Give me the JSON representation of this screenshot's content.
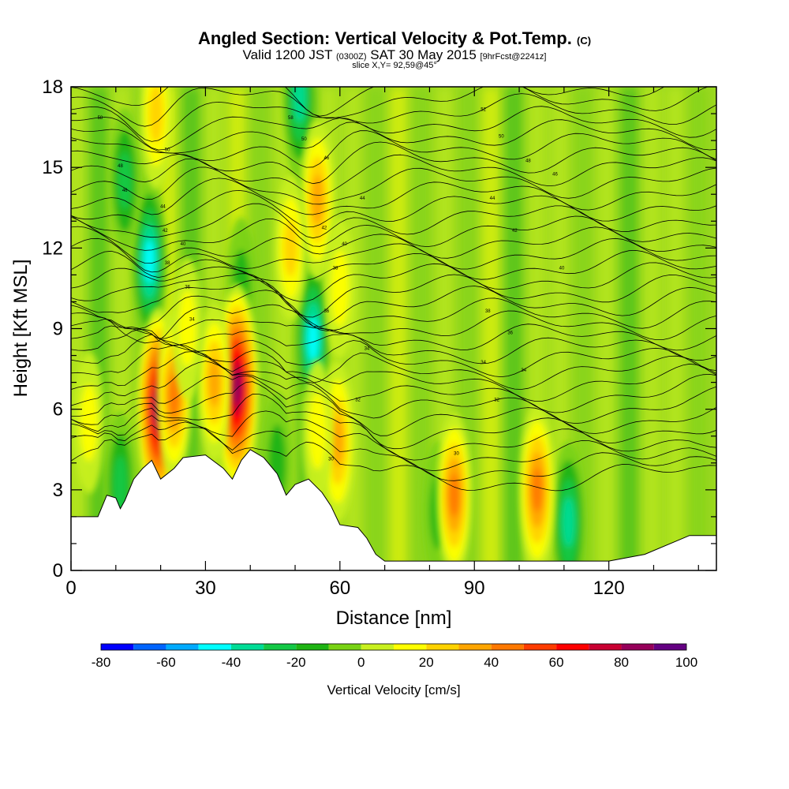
{
  "title": {
    "main": "Angled Section: Vertical Velocity & Pot.Temp.",
    "units": "(C)",
    "valid_prefix": "Valid 1200 JST",
    "valid_utc": "(0300Z)",
    "valid_date": "SAT 30 May 2015",
    "forecast": "[9hrFcst@2241z]",
    "slice": "slice X,Y= 92,59@45°"
  },
  "chart_data": {
    "type": "heatmap",
    "xlabel": "Distance [nm]",
    "ylabel": "Height [Kft MSL]",
    "xlim": [
      0,
      144
    ],
    "ylim": [
      0,
      18
    ],
    "x_ticks": [
      0,
      30,
      60,
      90,
      120
    ],
    "y_ticks": [
      0,
      3,
      6,
      9,
      12,
      15,
      18
    ],
    "colorbar": {
      "label": "Vertical Velocity [cm/s]",
      "ticks": [
        -80,
        -60,
        -40,
        -20,
        0,
        20,
        40,
        60,
        80,
        100
      ],
      "levels": [
        -80,
        -70,
        -60,
        -50,
        -40,
        -30,
        -20,
        -10,
        0,
        10,
        20,
        30,
        40,
        50,
        60,
        70,
        80,
        90,
        100
      ],
      "colors": [
        "#0000ff",
        "#0064ff",
        "#00aaff",
        "#00ffff",
        "#00dc96",
        "#14c846",
        "#1eb414",
        "#78d214",
        "#c8f01e",
        "#ffff00",
        "#ffd200",
        "#ffa500",
        "#ff7800",
        "#ff3c00",
        "#ff0000",
        "#c80032",
        "#96005a",
        "#640082"
      ]
    },
    "terrain": [
      [
        0,
        2.0
      ],
      [
        6,
        2.0
      ],
      [
        8,
        2.8
      ],
      [
        10,
        2.7
      ],
      [
        11,
        2.3
      ],
      [
        12,
        2.6
      ],
      [
        14,
        3.4
      ],
      [
        16,
        3.8
      ],
      [
        18,
        4.1
      ],
      [
        20,
        3.4
      ],
      [
        23,
        3.8
      ],
      [
        25,
        4.2
      ],
      [
        30,
        4.3
      ],
      [
        34,
        3.8
      ],
      [
        36,
        3.4
      ],
      [
        38,
        4.1
      ],
      [
        40,
        4.5
      ],
      [
        43,
        4.2
      ],
      [
        46,
        3.6
      ],
      [
        48,
        2.8
      ],
      [
        50,
        3.2
      ],
      [
        53,
        3.4
      ],
      [
        56,
        2.9
      ],
      [
        58,
        2.4
      ],
      [
        60,
        1.7
      ],
      [
        64,
        1.6
      ],
      [
        66,
        1.2
      ],
      [
        68,
        0.6
      ],
      [
        70,
        0.35
      ],
      [
        90,
        0.35
      ],
      [
        100,
        0.35
      ],
      [
        113,
        0.35
      ],
      [
        120,
        0.35
      ],
      [
        128,
        0.6
      ],
      [
        138,
        1.3
      ],
      [
        144,
        1.3
      ]
    ],
    "updrafts": [
      {
        "x": 19.5,
        "y": 6.0,
        "value": 85
      },
      {
        "x": 37.0,
        "y": 6.8,
        "value": 90
      },
      {
        "x": 23.0,
        "y": 6.5,
        "value": 45
      },
      {
        "x": 32.0,
        "y": 7.0,
        "value": 35
      },
      {
        "x": 59.5,
        "y": 4.8,
        "value": 40
      },
      {
        "x": 55.0,
        "y": 5.2,
        "value": 20
      },
      {
        "x": 85.5,
        "y": 2.8,
        "value": 45
      },
      {
        "x": 104.0,
        "y": 3.0,
        "value": 50
      },
      {
        "x": 19.0,
        "y": 17.0,
        "value": 30
      },
      {
        "x": 55.0,
        "y": 13.8,
        "value": 40
      },
      {
        "x": 49.0,
        "y": 12.0,
        "value": 25
      },
      {
        "x": 4.0,
        "y": 5.5,
        "value": 20
      },
      {
        "x": 26.0,
        "y": 9.0,
        "value": 20
      },
      {
        "x": 60.0,
        "y": 10.5,
        "value": 20
      }
    ],
    "downdrafts": [
      {
        "x": 17.5,
        "y": 11.5,
        "value": -45
      },
      {
        "x": 54.0,
        "y": 8.6,
        "value": -45
      },
      {
        "x": 51.0,
        "y": 17.6,
        "value": -40
      },
      {
        "x": 111.0,
        "y": 1.8,
        "value": -40
      },
      {
        "x": 82.0,
        "y": 2.2,
        "value": -20
      },
      {
        "x": 11.0,
        "y": 3.2,
        "value": -25
      },
      {
        "x": 12.0,
        "y": 14.5,
        "value": -25
      },
      {
        "x": 38.0,
        "y": 10.5,
        "value": -20
      },
      {
        "x": 46.0,
        "y": 4.0,
        "value": -20
      }
    ],
    "theta_contour_labels": [
      {
        "x": 6.5,
        "y": 16.8,
        "label": "58"
      },
      {
        "x": 21.5,
        "y": 15.6,
        "label": "50"
      },
      {
        "x": 11.0,
        "y": 15.0,
        "label": "48"
      },
      {
        "x": 12.0,
        "y": 14.1,
        "label": "46"
      },
      {
        "x": 20.5,
        "y": 13.5,
        "label": "44"
      },
      {
        "x": 21.0,
        "y": 12.6,
        "label": "42"
      },
      {
        "x": 25.0,
        "y": 12.1,
        "label": "40"
      },
      {
        "x": 21.5,
        "y": 11.4,
        "label": "38"
      },
      {
        "x": 26.0,
        "y": 10.5,
        "label": "36"
      },
      {
        "x": 27.0,
        "y": 9.3,
        "label": "34"
      },
      {
        "x": 49.0,
        "y": 16.8,
        "label": "58"
      },
      {
        "x": 52.0,
        "y": 16.0,
        "label": "50"
      },
      {
        "x": 57.0,
        "y": 15.3,
        "label": "46"
      },
      {
        "x": 65.0,
        "y": 13.8,
        "label": "44"
      },
      {
        "x": 56.5,
        "y": 12.7,
        "label": "42"
      },
      {
        "x": 61.0,
        "y": 12.1,
        "label": "40"
      },
      {
        "x": 59.0,
        "y": 11.2,
        "label": "38"
      },
      {
        "x": 57.0,
        "y": 9.6,
        "label": "36"
      },
      {
        "x": 66.0,
        "y": 8.2,
        "label": "34"
      },
      {
        "x": 64.0,
        "y": 6.3,
        "label": "32"
      },
      {
        "x": 58.0,
        "y": 4.1,
        "label": "30"
      },
      {
        "x": 86.0,
        "y": 4.3,
        "label": "30"
      },
      {
        "x": 92.0,
        "y": 17.1,
        "label": "52"
      },
      {
        "x": 96.0,
        "y": 16.1,
        "label": "50"
      },
      {
        "x": 102.0,
        "y": 15.2,
        "label": "48"
      },
      {
        "x": 108.0,
        "y": 14.7,
        "label": "46"
      },
      {
        "x": 94.0,
        "y": 13.8,
        "label": "44"
      },
      {
        "x": 99.0,
        "y": 12.6,
        "label": "42"
      },
      {
        "x": 109.5,
        "y": 11.2,
        "label": "40"
      },
      {
        "x": 93.0,
        "y": 9.6,
        "label": "38"
      },
      {
        "x": 98.0,
        "y": 8.8,
        "label": "36"
      },
      {
        "x": 92.0,
        "y": 7.7,
        "label": "34"
      },
      {
        "x": 101.0,
        "y": 7.4,
        "label": "34"
      },
      {
        "x": 95.0,
        "y": 6.3,
        "label": "32"
      }
    ]
  }
}
